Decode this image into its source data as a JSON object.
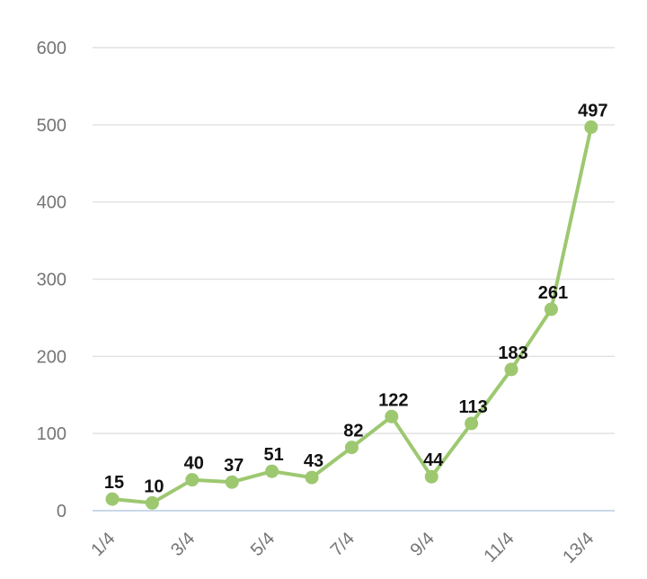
{
  "chart_data": {
    "type": "line",
    "x": [
      "1/4",
      "2/4",
      "3/4",
      "4/4",
      "5/4",
      "6/4",
      "7/4",
      "8/4",
      "9/4",
      "10/4",
      "11/4",
      "12/4",
      "13/4"
    ],
    "x_tick_labels": [
      "1/4",
      "3/4",
      "5/4",
      "7/4",
      "9/4",
      "11/4",
      "13/4"
    ],
    "series": [
      {
        "values": [
          15,
          10,
          40,
          37,
          51,
          43,
          82,
          122,
          44,
          113,
          183,
          261,
          497
        ]
      }
    ],
    "y_ticks": [
      0,
      100,
      200,
      300,
      400,
      500,
      600
    ],
    "ylim": [
      0,
      600
    ],
    "grid": true,
    "line_color": "#9dc870",
    "title": "",
    "xlabel": "",
    "ylabel": ""
  }
}
